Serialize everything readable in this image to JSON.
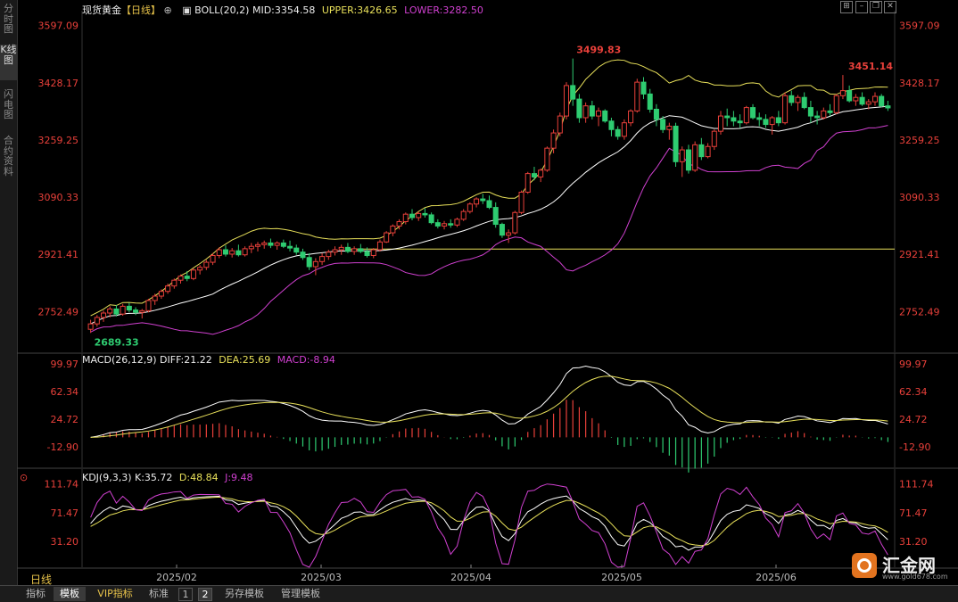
{
  "sidebar": {
    "items": [
      {
        "label": "分时图",
        "active": false
      },
      {
        "label": "K线图",
        "active": true
      },
      {
        "label": "闪电图",
        "active": false
      },
      {
        "label": "合约资料",
        "active": false
      }
    ]
  },
  "header": {
    "instrument": "现货黄金",
    "period": "【日线】",
    "boll_label": "BOLL(20,2)",
    "mid": "MID:3354.58",
    "upper": "UPPER:3426.65",
    "lower": "LOWER:3282.50"
  },
  "macd_header": {
    "label": "MACD(26,12,9)",
    "diff": "DIFF:21.22",
    "dea": "DEA:25.69",
    "macd": "MACD:-8.94"
  },
  "kdj_header": {
    "label": "KDJ(9,3,3)",
    "k": "K:35.72",
    "d": "D:48.84",
    "j": "J:9.48"
  },
  "price_axis": [
    "3597.09",
    "3428.17",
    "3259.25",
    "3090.33",
    "2921.41",
    "2752.49"
  ],
  "macd_axis": [
    "99.97",
    "62.34",
    "24.72",
    "-12.90"
  ],
  "kdj_axis": [
    "111.74",
    "71.47",
    "31.20"
  ],
  "annotations": {
    "high1": "3499.83",
    "high2": "3451.14",
    "low": "2689.33"
  },
  "date_axis": [
    "2025/02",
    "2025/03",
    "2025/04",
    "2025/05",
    "2025/06"
  ],
  "period_label": "日线",
  "bottom_tabs": [
    "指标",
    "模板",
    "VIP指标",
    "标准",
    "1",
    "2",
    "另存模板",
    "管理模板"
  ],
  "logo": {
    "name": "汇金网",
    "url": "www.gold678.com"
  },
  "colors": {
    "up": "#e8403a",
    "down": "#2ecc71",
    "mid": "#ffffff",
    "upper": "#e8e05a",
    "lower": "#d040d0",
    "support": "#e8e05a"
  },
  "chart_data": {
    "type": "candlestick",
    "title": "现货黄金【日线】",
    "x_ticks": [
      "2025/02",
      "2025/03",
      "2025/04",
      "2025/05",
      "2025/06"
    ],
    "ylim": [
      2640,
      3620
    ],
    "support_level": 2937,
    "candles_ohlc": [
      [
        2700,
        2728,
        2689.33,
        2716
      ],
      [
        2716,
        2742,
        2708,
        2735
      ],
      [
        2735,
        2755,
        2722,
        2748
      ],
      [
        2748,
        2768,
        2735,
        2760
      ],
      [
        2760,
        2772,
        2738,
        2745
      ],
      [
        2745,
        2775,
        2740,
        2768
      ],
      [
        2768,
        2778,
        2750,
        2757
      ],
      [
        2757,
        2765,
        2742,
        2750
      ],
      [
        2750,
        2760,
        2732,
        2755
      ],
      [
        2755,
        2790,
        2750,
        2785
      ],
      [
        2785,
        2805,
        2772,
        2798
      ],
      [
        2798,
        2818,
        2790,
        2812
      ],
      [
        2812,
        2835,
        2805,
        2828
      ],
      [
        2828,
        2850,
        2820,
        2845
      ],
      [
        2845,
        2862,
        2835,
        2857
      ],
      [
        2857,
        2872,
        2842,
        2850
      ],
      [
        2850,
        2880,
        2845,
        2875
      ],
      [
        2875,
        2890,
        2862,
        2883
      ],
      [
        2883,
        2905,
        2875,
        2898
      ],
      [
        2898,
        2925,
        2890,
        2918
      ],
      [
        2918,
        2942,
        2910,
        2935
      ],
      [
        2935,
        2948,
        2915,
        2922
      ],
      [
        2922,
        2940,
        2912,
        2932
      ],
      [
        2932,
        2950,
        2915,
        2920
      ],
      [
        2920,
        2945,
        2915,
        2938
      ],
      [
        2938,
        2955,
        2925,
        2945
      ],
      [
        2945,
        2958,
        2930,
        2950
      ],
      [
        2950,
        2962,
        2938,
        2955
      ],
      [
        2955,
        2968,
        2940,
        2948
      ],
      [
        2948,
        2960,
        2935,
        2955
      ],
      [
        2955,
        2965,
        2940,
        2945
      ],
      [
        2945,
        2962,
        2930,
        2940
      ],
      [
        2940,
        2950,
        2920,
        2928
      ],
      [
        2928,
        2938,
        2905,
        2912
      ],
      [
        2912,
        2925,
        2875,
        2885
      ],
      [
        2885,
        2910,
        2860,
        2900
      ],
      [
        2900,
        2925,
        2890,
        2915
      ],
      [
        2915,
        2935,
        2905,
        2928
      ],
      [
        2928,
        2945,
        2918,
        2935
      ],
      [
        2935,
        2950,
        2920,
        2942
      ],
      [
        2942,
        2955,
        2925,
        2930
      ],
      [
        2930,
        2945,
        2920,
        2938
      ],
      [
        2938,
        2952,
        2925,
        2930
      ],
      [
        2930,
        2942,
        2912,
        2918
      ],
      [
        2918,
        2940,
        2910,
        2935
      ],
      [
        2935,
        2965,
        2930,
        2958
      ],
      [
        2958,
        2990,
        2955,
        2985
      ],
      [
        2985,
        3010,
        2975,
        3005
      ],
      [
        3005,
        3025,
        2995,
        3018
      ],
      [
        3018,
        3045,
        3010,
        3040
      ],
      [
        3040,
        3055,
        3022,
        3030
      ],
      [
        3030,
        3048,
        3020,
        3042
      ],
      [
        3042,
        3058,
        3030,
        3038
      ],
      [
        3038,
        3045,
        3010,
        3015
      ],
      [
        3015,
        3025,
        2998,
        3005
      ],
      [
        3005,
        3020,
        2995,
        3012
      ],
      [
        3012,
        3025,
        3000,
        3008
      ],
      [
        3008,
        3030,
        3002,
        3025
      ],
      [
        3025,
        3055,
        3020,
        3048
      ],
      [
        3048,
        3075,
        3042,
        3070
      ],
      [
        3070,
        3090,
        3060,
        3085
      ],
      [
        3085,
        3100,
        3070,
        3080
      ],
      [
        3080,
        3095,
        3055,
        3060
      ],
      [
        3060,
        3075,
        3000,
        3010
      ],
      [
        3010,
        3015,
        2970,
        2978
      ],
      [
        2978,
        2995,
        2955,
        2985
      ],
      [
        2985,
        3050,
        2980,
        3045
      ],
      [
        3045,
        3110,
        3040,
        3105
      ],
      [
        3105,
        3165,
        3100,
        3160
      ],
      [
        3160,
        3180,
        3140,
        3150
      ],
      [
        3150,
        3175,
        3135,
        3170
      ],
      [
        3170,
        3240,
        3165,
        3235
      ],
      [
        3235,
        3290,
        3220,
        3280
      ],
      [
        3280,
        3340,
        3270,
        3330
      ],
      [
        3330,
        3430,
        3320,
        3420
      ],
      [
        3420,
        3499.83,
        3360,
        3380
      ],
      [
        3380,
        3395,
        3310,
        3325
      ],
      [
        3325,
        3370,
        3310,
        3360
      ],
      [
        3360,
        3375,
        3320,
        3330
      ],
      [
        3330,
        3355,
        3300,
        3345
      ],
      [
        3345,
        3350,
        3310,
        3315
      ],
      [
        3315,
        3325,
        3270,
        3290
      ],
      [
        3290,
        3300,
        3260,
        3270
      ],
      [
        3270,
        3320,
        3260,
        3310
      ],
      [
        3310,
        3350,
        3300,
        3345
      ],
      [
        3345,
        3440,
        3340,
        3430
      ],
      [
        3430,
        3445,
        3380,
        3395
      ],
      [
        3395,
        3410,
        3340,
        3350
      ],
      [
        3350,
        3365,
        3300,
        3320
      ],
      [
        3320,
        3330,
        3280,
        3290
      ],
      [
        3290,
        3310,
        3260,
        3300
      ],
      [
        3300,
        3310,
        3180,
        3195
      ],
      [
        3195,
        3240,
        3150,
        3230
      ],
      [
        3230,
        3245,
        3160,
        3170
      ],
      [
        3170,
        3255,
        3165,
        3245
      ],
      [
        3245,
        3265,
        3200,
        3210
      ],
      [
        3210,
        3250,
        3205,
        3240
      ],
      [
        3240,
        3290,
        3230,
        3285
      ],
      [
        3285,
        3345,
        3275,
        3330
      ],
      [
        3330,
        3352,
        3300,
        3325
      ],
      [
        3325,
        3345,
        3300,
        3315
      ],
      [
        3315,
        3335,
        3295,
        3310
      ],
      [
        3310,
        3360,
        3305,
        3355
      ],
      [
        3355,
        3365,
        3320,
        3325
      ],
      [
        3325,
        3340,
        3300,
        3320
      ],
      [
        3320,
        3335,
        3295,
        3305
      ],
      [
        3305,
        3330,
        3275,
        3325
      ],
      [
        3325,
        3345,
        3300,
        3310
      ],
      [
        3310,
        3400,
        3305,
        3390
      ],
      [
        3390,
        3405,
        3360,
        3370
      ],
      [
        3370,
        3392,
        3345,
        3385
      ],
      [
        3385,
        3400,
        3350,
        3355
      ],
      [
        3355,
        3375,
        3310,
        3330
      ],
      [
        3330,
        3345,
        3305,
        3325
      ],
      [
        3325,
        3355,
        3320,
        3345
      ],
      [
        3345,
        3365,
        3330,
        3340
      ],
      [
        3340,
        3395,
        3335,
        3390
      ],
      [
        3390,
        3451.14,
        3380,
        3405
      ],
      [
        3405,
        3420,
        3370,
        3375
      ],
      [
        3375,
        3395,
        3360,
        3385
      ],
      [
        3385,
        3400,
        3360,
        3365
      ],
      [
        3365,
        3380,
        3350,
        3372
      ],
      [
        3372,
        3400,
        3360,
        3388
      ],
      [
        3388,
        3395,
        3355,
        3360
      ],
      [
        3360,
        3375,
        3345,
        3354
      ]
    ]
  }
}
